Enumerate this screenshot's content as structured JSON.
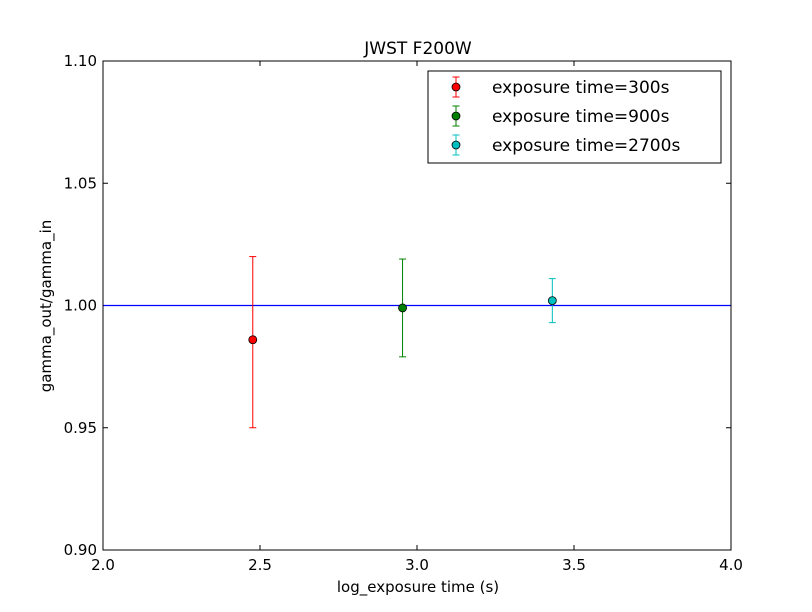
{
  "chart_data": {
    "type": "scatter",
    "title": "JWST F200W",
    "xlabel": "log_exposure time (s)",
    "ylabel": "gamma_out/gamma_in",
    "xlim": [
      2.0,
      4.0
    ],
    "ylim": [
      0.9,
      1.1
    ],
    "xticks": [
      2.0,
      2.5,
      3.0,
      3.5,
      4.0
    ],
    "xtick_labels": [
      "2.0",
      "2.5",
      "3.0",
      "3.5",
      "4.0"
    ],
    "yticks": [
      0.9,
      0.95,
      1.0,
      1.05,
      1.1
    ],
    "ytick_labels": [
      "0.90",
      "0.95",
      "1.00",
      "1.05",
      "1.10"
    ],
    "grid": false,
    "legend_position": "top-right",
    "reference_line": {
      "y": 1.0,
      "color": "#0000ff"
    },
    "series": [
      {
        "name": "exposure time=300s",
        "color": "#ff0000",
        "points": [
          {
            "x": 2.477,
            "y": 0.986,
            "yerr_low": 0.95,
            "yerr_high": 1.02
          }
        ]
      },
      {
        "name": "exposure time=900s",
        "color": "#008000",
        "points": [
          {
            "x": 2.954,
            "y": 0.999,
            "yerr_low": 0.979,
            "yerr_high": 1.019
          }
        ]
      },
      {
        "name": "exposure time=2700s",
        "color": "#00bfbf",
        "points": [
          {
            "x": 3.431,
            "y": 1.002,
            "yerr_low": 0.993,
            "yerr_high": 1.011
          }
        ]
      }
    ]
  }
}
